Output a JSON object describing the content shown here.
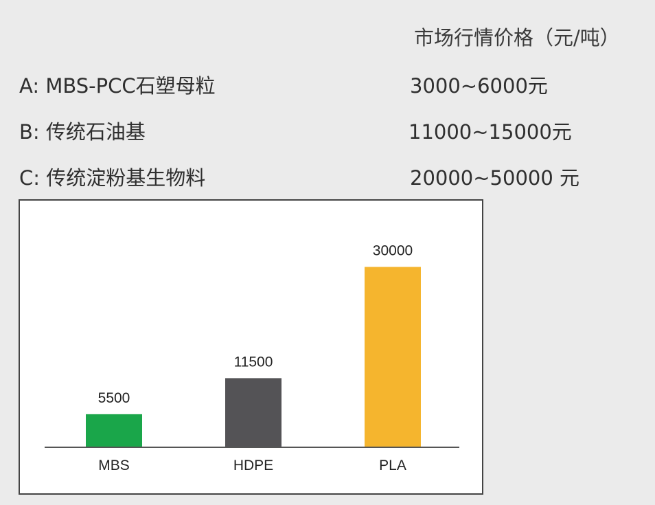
{
  "header": {
    "price_column_title": "市场行情价格（元/吨）"
  },
  "rows": [
    {
      "name": "A: MBS-PCC石塑母粒",
      "price": "3000~6000元"
    },
    {
      "name": "B: 传统石油基",
      "price": "11000~15000元"
    },
    {
      "name": "C: 传统淀粉基生物料",
      "price": "20000~50000 元"
    }
  ],
  "chart_data": {
    "type": "bar",
    "title": "",
    "xlabel": "",
    "ylabel": "",
    "categories": [
      "MBS",
      "HDPE",
      "PLA"
    ],
    "values": [
      5500,
      11500,
      30000
    ],
    "data_labels": [
      "5500",
      "11500",
      "30000"
    ],
    "colors": [
      "#1aa64a",
      "#545356",
      "#f5b52e"
    ],
    "ylim": [
      0,
      32000
    ],
    "grid": false,
    "legend": "none"
  }
}
